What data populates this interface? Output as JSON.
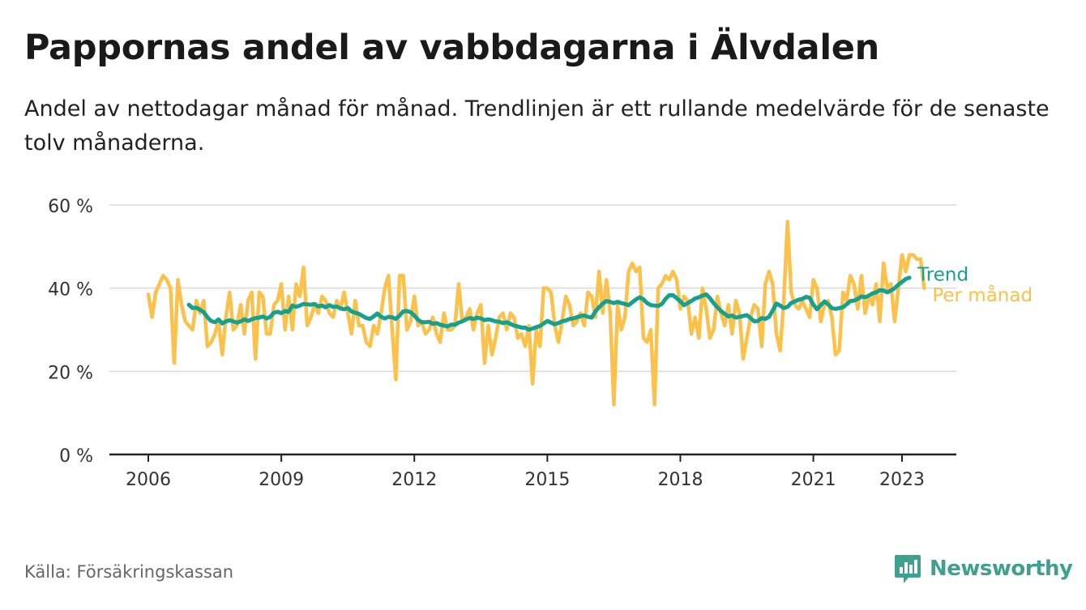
{
  "title": "Pappornas andel av vabbdagarna i Älvdalen",
  "subtitle": "Andel av nettodagar månad för månad. Trendlinjen är ett rullande medelvärde för de senaste tolv månaderna.",
  "source": "Källa: Försäkringskassan",
  "brand": "Newsworthy",
  "colors": {
    "monthly": "#fcc14b",
    "trend": "#16a08e",
    "grid": "#d9d9d9",
    "axis": "#222222",
    "brand": "#3fa08f"
  },
  "chart_data": {
    "type": "line",
    "ylim": [
      0,
      60
    ],
    "y_ticks": [
      0,
      20,
      40,
      60
    ],
    "y_tick_labels": [
      "0 %",
      "20 %",
      "40 %",
      "60 %"
    ],
    "x_ticks": [
      2006,
      2009,
      2012,
      2015,
      2018,
      2021,
      2023
    ],
    "x_tick_labels": [
      "2006",
      "2009",
      "2012",
      "2015",
      "2018",
      "2021",
      "2023"
    ],
    "series": [
      {
        "name": "Per månad",
        "start": "2006-01",
        "values": [
          38.5,
          33,
          39,
          41,
          43,
          42,
          40,
          22,
          42,
          36,
          32,
          31,
          30,
          37,
          34,
          37,
          26,
          27,
          29,
          32,
          24,
          33,
          39,
          30,
          31,
          36,
          29,
          37,
          39,
          23,
          39,
          38,
          29,
          29,
          36,
          37,
          41,
          30,
          38,
          30,
          41,
          38,
          45,
          31,
          33,
          36,
          34,
          38,
          37,
          34,
          33,
          37,
          35,
          39,
          34,
          29,
          37,
          31,
          31,
          27,
          26,
          31,
          29,
          34,
          40,
          43,
          30,
          18,
          43,
          43,
          30,
          32,
          38,
          31,
          32,
          29,
          30,
          33,
          29,
          27,
          34,
          30,
          30,
          31,
          41,
          32,
          33,
          35,
          30,
          34,
          36,
          22,
          31,
          24,
          28,
          33,
          34,
          30,
          34,
          33,
          28,
          29,
          26,
          31,
          17,
          30,
          26,
          40,
          40,
          39,
          31,
          27,
          32,
          38,
          36,
          31,
          32,
          34,
          31,
          39,
          38,
          33,
          44,
          34,
          42,
          34,
          12,
          36,
          30,
          33,
          44,
          46,
          44,
          45,
          28,
          27,
          30,
          12,
          40,
          41,
          43,
          42,
          44,
          42,
          35,
          38,
          37,
          29,
          33,
          28,
          40,
          35,
          28,
          30,
          38,
          34,
          31,
          36,
          29,
          37,
          34,
          23,
          28,
          33,
          36,
          35,
          26,
          41,
          44,
          41,
          29,
          25,
          37,
          56,
          39,
          36,
          35,
          37,
          35,
          33,
          42,
          40,
          32,
          36,
          37,
          33,
          24,
          25,
          39,
          37,
          43,
          41,
          35,
          43,
          34,
          38,
          36,
          41,
          32,
          46,
          40,
          41,
          32,
          40,
          48,
          44,
          48,
          48,
          47,
          47,
          40
        ]
      },
      {
        "name": "Trend",
        "start": "2006-12",
        "values": [
          36.0,
          35.2,
          35.3,
          34.8,
          34.2,
          33.0,
          32.1,
          31.8,
          32.5,
          31.5,
          32.0,
          32.3,
          32.0,
          31.7,
          32.0,
          32.5,
          32.1,
          32.5,
          32.8,
          32.9,
          33.2,
          32.7,
          33.1,
          34.1,
          34.3,
          34.0,
          34.5,
          34.3,
          35.8,
          35.5,
          35.8,
          36.2,
          36.1,
          36.0,
          36.2,
          35.6,
          35.8,
          35.4,
          35.9,
          35.5,
          35.6,
          35.1,
          34.9,
          35.2,
          34.4,
          34.1,
          33.8,
          33.3,
          32.8,
          32.6,
          33.2,
          33.9,
          33.1,
          32.7,
          33.1,
          33.0,
          32.6,
          33.4,
          34.4,
          34.5,
          34.2,
          33.4,
          32.4,
          31.8,
          31.8,
          31.9,
          31.4,
          31.6,
          31.2,
          31.0,
          30.8,
          31.2,
          31.2,
          31.7,
          32.0,
          32.5,
          32.8,
          32.6,
          32.9,
          32.7,
          32.3,
          32.5,
          32.3,
          32.0,
          31.9,
          31.6,
          31.8,
          31.4,
          31.0,
          30.8,
          30.5,
          30.5,
          30.0,
          30.3,
          30.6,
          30.9,
          31.5,
          32.1,
          31.7,
          31.3,
          31.6,
          32.0,
          32.2,
          32.6,
          32.7,
          33.0,
          33.3,
          33.4,
          33.1,
          32.9,
          34.4,
          35.4,
          36.3,
          36.9,
          36.7,
          36.4,
          36.7,
          36.4,
          36.2,
          35.9,
          36.6,
          37.3,
          37.8,
          37.3,
          36.4,
          35.9,
          35.8,
          35.7,
          36.2,
          37.4,
          38.3,
          38.3,
          37.6,
          36.8,
          35.9,
          36.4,
          36.9,
          37.5,
          37.8,
          38.2,
          38.5,
          37.6,
          36.4,
          35.4,
          34.5,
          33.8,
          33.2,
          33.4,
          32.9,
          33.1,
          33.3,
          33.5,
          32.8,
          32.0,
          32.1,
          32.8,
          32.6,
          33.1,
          34.6,
          36.3,
          35.8,
          35.2,
          35.5,
          36.4,
          36.8,
          37.2,
          37.4,
          37.9,
          37.7,
          36.0,
          34.9,
          35.9,
          36.8,
          36.1,
          35.2,
          35.0,
          35.2,
          35.4,
          36.1,
          36.9,
          37.0,
          37.4,
          38.0,
          37.8,
          38.2,
          38.7,
          39.0,
          39.5,
          39.4,
          39.0,
          39.4,
          40.0,
          40.8,
          41.5,
          42.2,
          42.5
        ]
      }
    ]
  }
}
